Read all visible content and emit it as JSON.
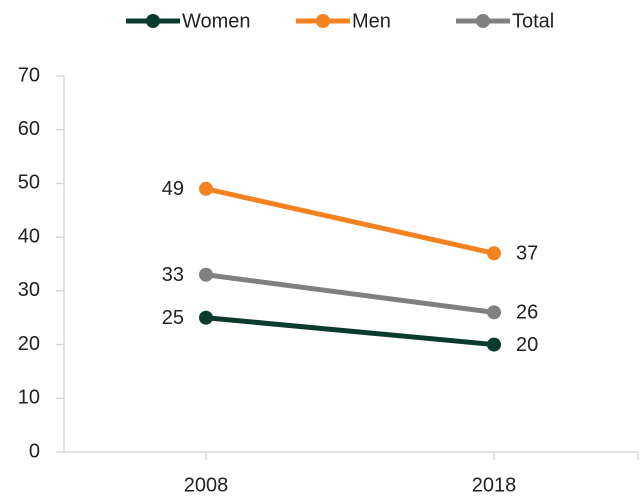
{
  "chart_data": {
    "type": "line",
    "categories": [
      "2008",
      "2018"
    ],
    "series": [
      {
        "name": "Women",
        "color": "#0b3b2f",
        "values": [
          25,
          20
        ]
      },
      {
        "name": "Men",
        "color": "#f58220",
        "values": [
          49,
          37
        ]
      },
      {
        "name": "Total",
        "color": "#808080",
        "values": [
          33,
          26
        ]
      }
    ],
    "ylim": [
      0,
      70
    ],
    "yticks": [
      0,
      10,
      20,
      30,
      40,
      50,
      60,
      70
    ],
    "grid": false,
    "legend": "top"
  }
}
